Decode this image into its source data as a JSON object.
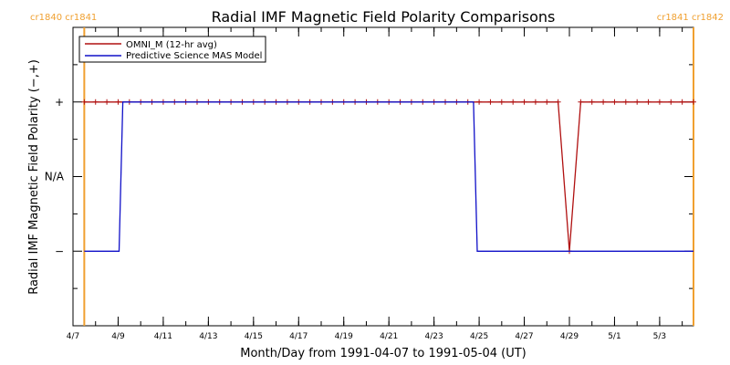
{
  "chart_data": {
    "type": "line",
    "title": "Radial IMF Magnetic Field Polarity Comparisons",
    "xlabel": "Month/Day from 1991-04-07 to 1991-05-04 (UT)",
    "ylabel": "Radial IMF Magnetic Field Polarity (−,+)",
    "xlim": [
      "1991-04-07T00:00",
      "1991-05-04T12:00"
    ],
    "x_tick_labels": [
      {
        "date": "1991-04-07",
        "label": "4/7"
      },
      {
        "date": "1991-04-09",
        "label": "4/9"
      },
      {
        "date": "1991-04-11",
        "label": "4/11"
      },
      {
        "date": "1991-04-13",
        "label": "4/13"
      },
      {
        "date": "1991-04-15",
        "label": "4/15"
      },
      {
        "date": "1991-04-17",
        "label": "4/17"
      },
      {
        "date": "1991-04-19",
        "label": "4/19"
      },
      {
        "date": "1991-04-21",
        "label": "4/21"
      },
      {
        "date": "1991-04-23",
        "label": "4/23"
      },
      {
        "date": "1991-04-25",
        "label": "4/25"
      },
      {
        "date": "1991-04-27",
        "label": "4/27"
      },
      {
        "date": "1991-04-29",
        "label": "4/29"
      },
      {
        "date": "1991-05-01",
        "label": "5/1"
      },
      {
        "date": "1991-05-03",
        "label": "5/3"
      }
    ],
    "y_ticks": [
      {
        "value": -1,
        "label": "−"
      },
      {
        "value": 0,
        "label": "N/A"
      },
      {
        "value": 1,
        "label": "+"
      }
    ],
    "ylim": [
      -2,
      2
    ],
    "legend": {
      "position": "top-left",
      "entries": [
        "OMNI_M (12-hr avg)",
        "Predictive Science MAS Model"
      ]
    },
    "rotation_markers": {
      "color": "#f0a030",
      "left": {
        "date": "1991-04-07T12:00",
        "label": "cr1840 cr1841"
      },
      "right": {
        "date": "1991-05-04T12:00",
        "label": "cr1841 cr1842"
      }
    },
    "series": [
      {
        "name": "OMNI_M (12-hr avg)",
        "color": "#b01010",
        "marker": "+",
        "x": [
          "1991-04-07T12:00",
          "1991-04-08T00:00",
          "1991-04-08T12:00",
          "1991-04-09T00:00",
          "1991-04-09T12:00",
          "1991-04-10T00:00",
          "1991-04-10T12:00",
          "1991-04-11T00:00",
          "1991-04-11T12:00",
          "1991-04-12T00:00",
          "1991-04-12T12:00",
          "1991-04-13T00:00",
          "1991-04-13T12:00",
          "1991-04-14T00:00",
          "1991-04-14T12:00",
          "1991-04-15T00:00",
          "1991-04-15T12:00",
          "1991-04-16T00:00",
          "1991-04-16T12:00",
          "1991-04-17T00:00",
          "1991-04-17T12:00",
          "1991-04-18T00:00",
          "1991-04-18T12:00",
          "1991-04-19T00:00",
          "1991-04-19T12:00",
          "1991-04-20T00:00",
          "1991-04-20T12:00",
          "1991-04-21T00:00",
          "1991-04-21T12:00",
          "1991-04-22T00:00",
          "1991-04-22T12:00",
          "1991-04-23T00:00",
          "1991-04-23T12:00",
          "1991-04-24T00:00",
          "1991-04-24T12:00",
          "1991-04-25T00:00",
          "1991-04-25T12:00",
          "1991-04-26T00:00",
          "1991-04-26T12:00",
          "1991-04-27T00:00",
          "1991-04-27T12:00",
          "1991-04-28T00:00",
          "1991-04-28T12:00",
          "1991-04-29T00:00",
          "1991-04-29T12:00",
          "1991-04-30T00:00",
          "1991-04-30T12:00",
          "1991-05-01T00:00",
          "1991-05-01T12:00",
          "1991-05-02T00:00",
          "1991-05-02T12:00",
          "1991-05-03T00:00",
          "1991-05-03T12:00",
          "1991-05-04T00:00",
          "1991-05-04T12:00"
        ],
        "values": [
          1,
          1,
          1,
          1,
          1,
          1,
          1,
          1,
          1,
          1,
          1,
          1,
          1,
          1,
          1,
          1,
          1,
          1,
          1,
          1,
          1,
          1,
          1,
          1,
          1,
          1,
          1,
          1,
          1,
          1,
          1,
          1,
          1,
          1,
          1,
          1,
          1,
          1,
          1,
          1,
          1,
          1,
          1,
          -1,
          1,
          1,
          1,
          1,
          1,
          1,
          1,
          1,
          1,
          1,
          1
        ]
      },
      {
        "name": "Predictive Science MAS Model",
        "color": "#1010c8",
        "x": [
          "1991-04-07T12:00",
          "1991-04-09T01:00",
          "1991-04-09T05:00",
          "1991-04-24T18:00",
          "1991-04-24T22:00",
          "1991-05-04T12:00"
        ],
        "values": [
          -1,
          -1,
          1,
          1,
          -1,
          -1
        ]
      }
    ]
  }
}
